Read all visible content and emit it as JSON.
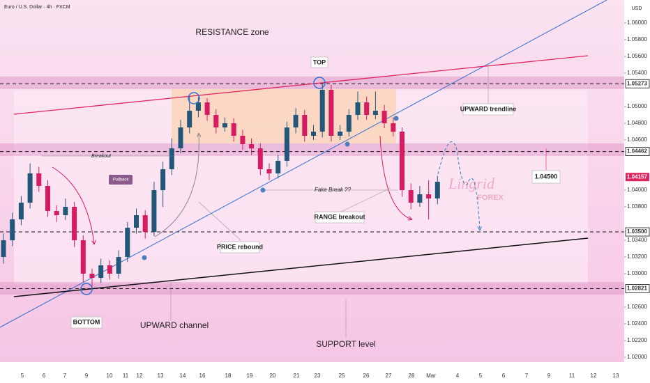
{
  "header": {
    "symbol": "Euro / U.S. Dollar · 4h · FXCM",
    "unit": "USD"
  },
  "chart_data": {
    "type": "candlestick",
    "ylim": [
      1.01942,
      1.06275
    ],
    "yticks": [
      {
        "value": 1.06,
        "label": "1.06000"
      },
      {
        "value": 1.058,
        "label": "1.05800"
      },
      {
        "value": 1.056,
        "label": "1.05600"
      },
      {
        "value": 1.054,
        "label": "1.05400"
      },
      {
        "value": 1.05,
        "label": "1.05000"
      },
      {
        "value": 1.048,
        "label": "1.04800"
      },
      {
        "value": 1.046,
        "label": "1.04600"
      },
      {
        "value": 1.04,
        "label": "1.04000"
      },
      {
        "value": 1.038,
        "label": "1.03800"
      },
      {
        "value": 1.034,
        "label": "1.03400"
      },
      {
        "value": 1.032,
        "label": "1.03200"
      },
      {
        "value": 1.03,
        "label": "1.03000"
      },
      {
        "value": 1.026,
        "label": "1.02600"
      },
      {
        "value": 1.024,
        "label": "1.02400"
      },
      {
        "value": 1.022,
        "label": "1.02200"
      },
      {
        "value": 1.02,
        "label": "1.02000"
      }
    ],
    "x_labels": [
      5,
      6,
      7,
      9,
      10,
      11,
      12,
      13,
      14,
      16,
      18,
      19,
      20,
      21,
      23,
      25,
      26,
      27,
      28,
      "Mar",
      4,
      5,
      6,
      7,
      9,
      11,
      12,
      13
    ],
    "up_color": "#22577a",
    "down_color": "#d81b60",
    "open": [
      1.032,
      1.034,
      1.0365,
      1.0385,
      1.042,
      1.0405,
      1.0375,
      1.037,
      1.038,
      1.034,
      1.03,
      1.0295,
      1.031,
      1.03,
      1.032,
      1.0355,
      1.037,
      1.035,
      1.04,
      1.0425,
      1.045,
      1.0475,
      1.0495,
      1.0505,
      1.049,
      1.0475,
      1.048,
      1.0465,
      1.0455,
      1.045,
      1.0425,
      1.042,
      1.0435,
      1.0475,
      1.049,
      1.0465,
      1.047,
      1.052,
      1.0465,
      1.047,
      1.049,
      1.0505,
      1.049,
      1.0495,
      1.048,
      1.047,
      1.04,
      1.0385,
      1.0395,
      1.039
    ],
    "high": [
      1.0348,
      1.0373,
      1.0393,
      1.0432,
      1.0428,
      1.0412,
      1.0382,
      1.039,
      1.0386,
      1.0346,
      1.0306,
      1.0318,
      1.0316,
      1.0328,
      1.0362,
      1.0378,
      1.0376,
      1.041,
      1.0434,
      1.0462,
      1.0484,
      1.0512,
      1.0512,
      1.051,
      1.0497,
      1.0487,
      1.0486,
      1.0472,
      1.0462,
      1.0456,
      1.0432,
      1.0442,
      1.0482,
      1.0498,
      1.0496,
      1.0478,
      1.0528,
      1.0526,
      1.0478,
      1.0497,
      1.0518,
      1.0512,
      1.0518,
      1.0502,
      1.0487,
      1.0475,
      1.0408,
      1.0405,
      1.0412,
      1.0417
    ],
    "low": [
      1.0312,
      1.0333,
      1.0358,
      1.0378,
      1.0398,
      1.0368,
      1.0362,
      1.0364,
      1.0332,
      1.029,
      1.0284,
      1.0289,
      1.0293,
      1.0294,
      1.0314,
      1.0348,
      1.0342,
      1.0345,
      1.038,
      1.0418,
      1.0444,
      1.0468,
      1.0487,
      1.0483,
      1.0468,
      1.047,
      1.0458,
      1.0448,
      1.0442,
      1.0418,
      1.0412,
      1.0414,
      1.0428,
      1.0468,
      1.0458,
      1.046,
      1.0463,
      1.0458,
      1.046,
      1.0464,
      1.0484,
      1.0484,
      1.0485,
      1.0474,
      1.0464,
      1.0392,
      1.0377,
      1.038,
      1.0365,
      1.0383
    ],
    "close": [
      1.034,
      1.0365,
      1.0385,
      1.042,
      1.0405,
      1.0375,
      1.037,
      1.038,
      1.034,
      1.03,
      1.0295,
      1.031,
      1.03,
      1.032,
      1.0355,
      1.037,
      1.035,
      1.04,
      1.0425,
      1.045,
      1.0475,
      1.0495,
      1.0505,
      1.049,
      1.0475,
      1.048,
      1.0465,
      1.0455,
      1.045,
      1.0425,
      1.042,
      1.0435,
      1.0475,
      1.049,
      1.0465,
      1.047,
      1.052,
      1.0465,
      1.047,
      1.049,
      1.0505,
      1.049,
      1.0495,
      1.048,
      1.047,
      1.04,
      1.0385,
      1.0395,
      1.039,
      1.041
    ],
    "zones": [
      {
        "low": 1.0521,
        "high": 1.0536
      },
      {
        "low": 1.0441,
        "high": 1.0456
      },
      {
        "low": 1.0275,
        "high": 1.029
      }
    ],
    "range_box": {
      "low": 1.0456,
      "high": 1.0521
    },
    "levels": [
      1.05273,
      1.04462,
      {
        "value": 1.035,
        "label": "1.03500"
      },
      1.02821
    ],
    "last_price": 1.04157,
    "annotations": {
      "resistance": "RESISTANCE zone",
      "top": "TOP",
      "bottom": "BOTTOM",
      "breakout": "Breakout",
      "pullback": "Pullback",
      "fake_break": "Fake Break ??",
      "range_breakout": "RANGE breakout",
      "price_rebound": "PRICE rebound",
      "trendline": "UPWARD trendline",
      "channel": "UPWARD channel",
      "support": "SUPPORT level",
      "target": {
        "value": 1.045,
        "label": "1.04500"
      }
    },
    "watermark": {
      "brand": "Lingrid",
      "sub": "FOREX"
    }
  }
}
